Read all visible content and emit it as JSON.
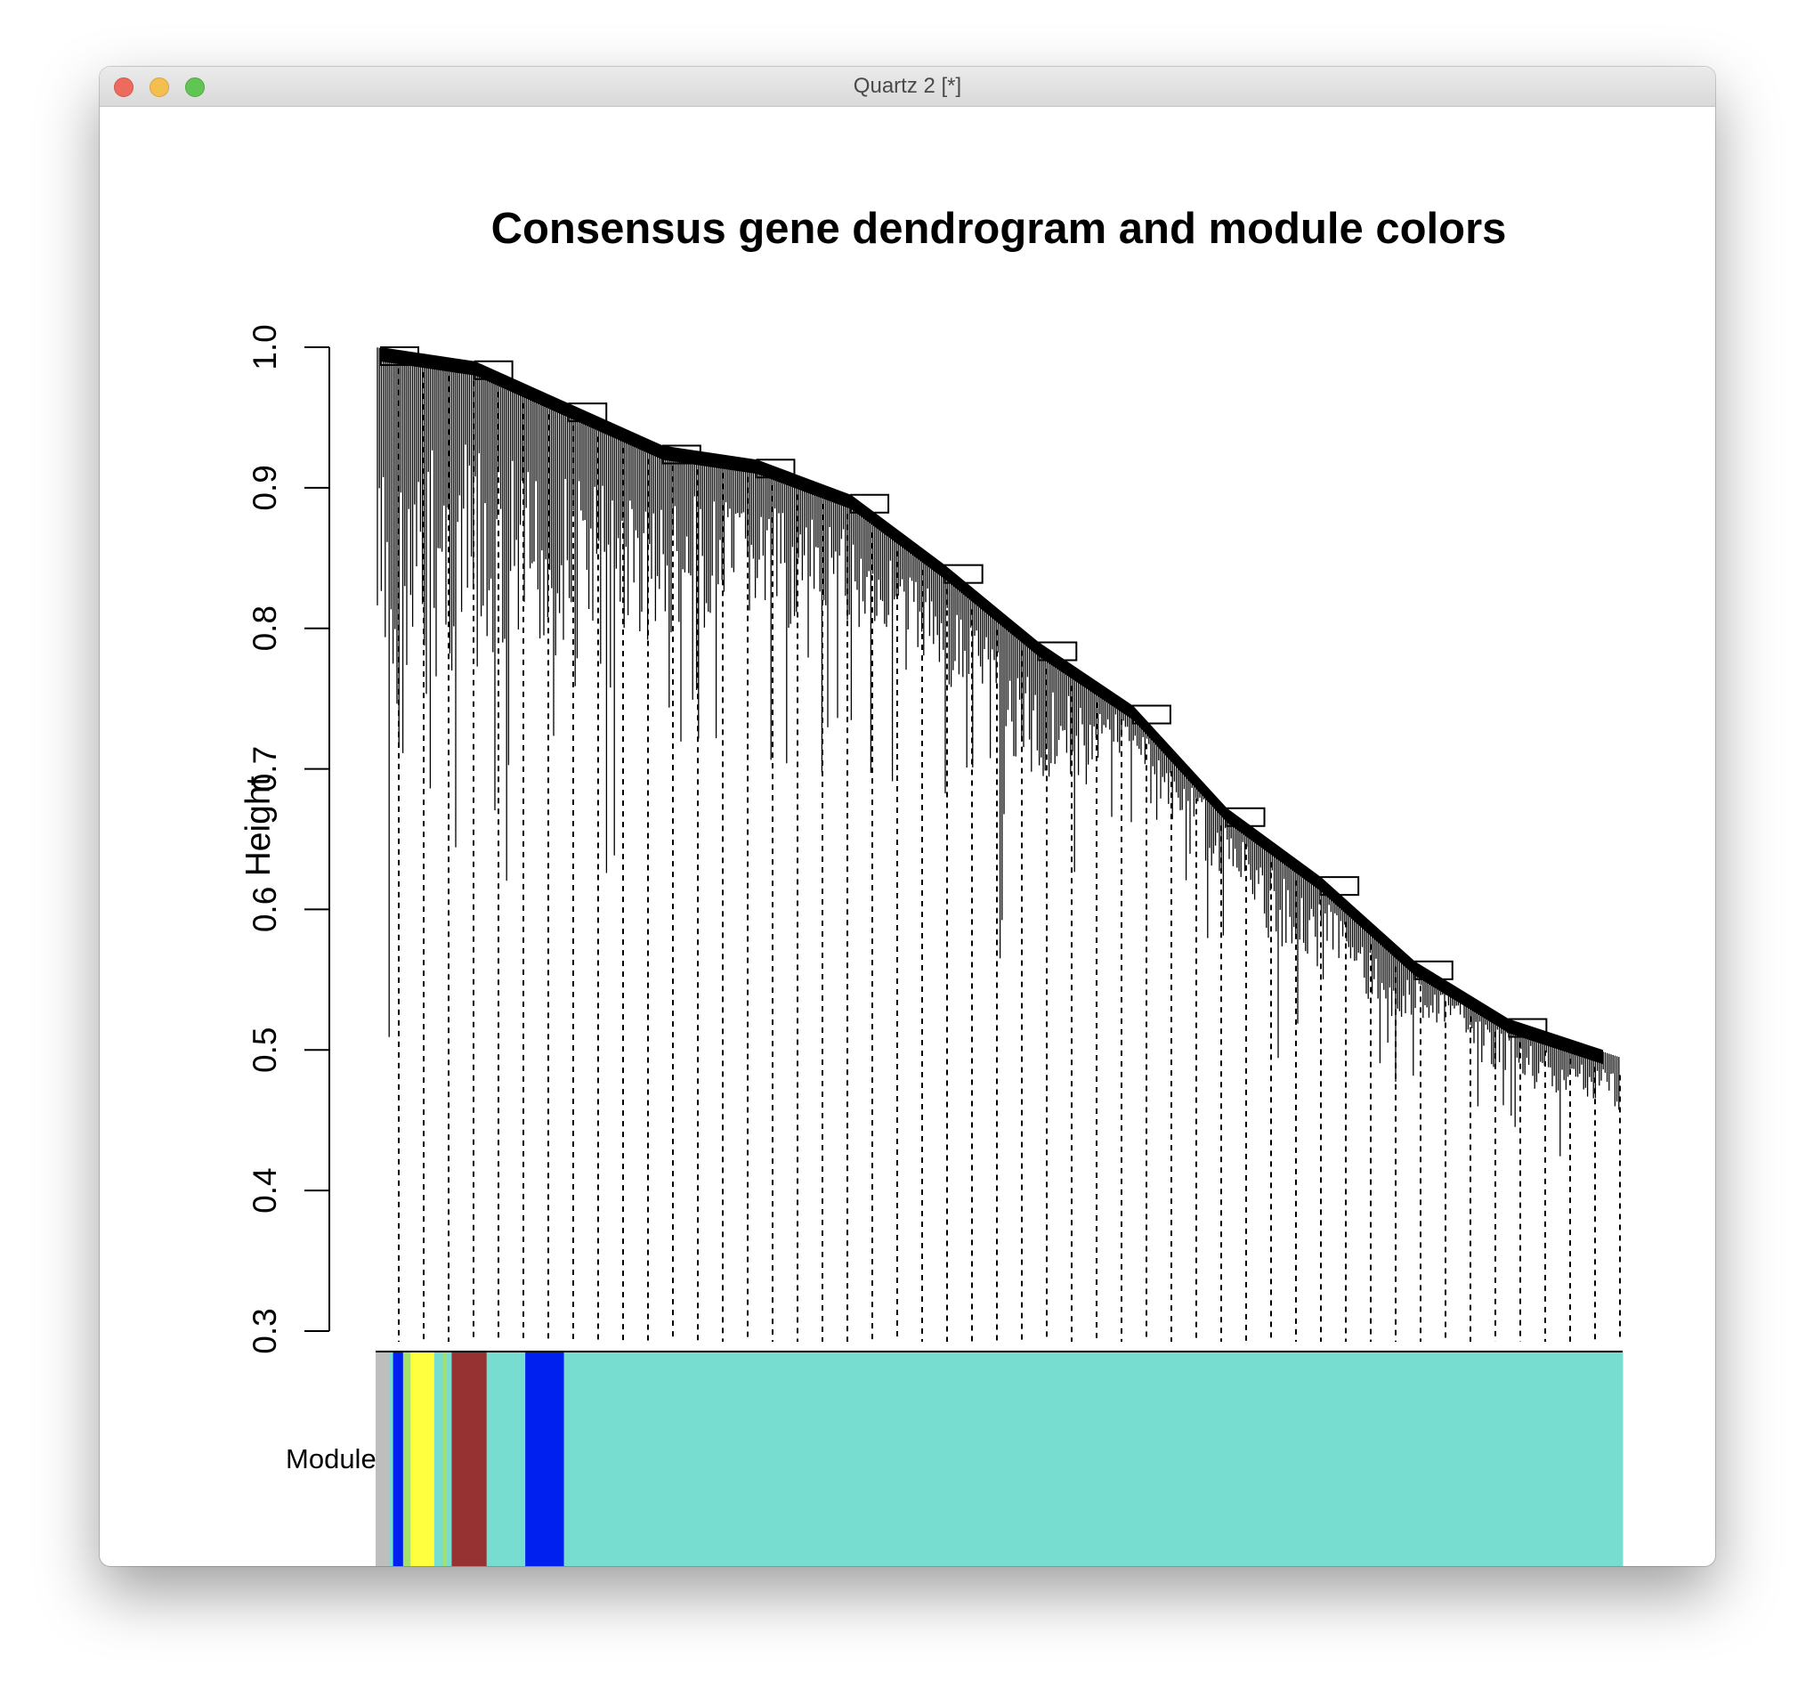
{
  "window": {
    "title": "Quartz 2 [*]"
  },
  "chart_data": {
    "type": "dendrogram",
    "title": "Consensus gene dendrogram and module colors",
    "xlabel": "",
    "ylabel": "Height",
    "ylim": [
      0.3,
      1.0
    ],
    "y_ticks": [
      "0.3",
      "0.4",
      "0.5",
      "0.6",
      "0.7",
      "0.8",
      "0.9",
      "1.0"
    ],
    "grid": false,
    "color_bar_label": "Module colors",
    "module_colors": {
      "grey": "#bebebe",
      "blue": "#0020f0",
      "yellow": "#ffff40",
      "greenyellow": "#a6e06a",
      "brown": "#963232",
      "turquoise": "#76ddd0"
    },
    "module_color_segments": [
      {
        "color": "grey",
        "fraction": 0.011
      },
      {
        "color": "turquoise",
        "fraction": 0.003
      },
      {
        "color": "blue",
        "fraction": 0.008
      },
      {
        "color": "greenyellow",
        "fraction": 0.006
      },
      {
        "color": "yellow",
        "fraction": 0.019
      },
      {
        "color": "turquoise",
        "fraction": 0.007
      },
      {
        "color": "greenyellow",
        "fraction": 0.003
      },
      {
        "color": "turquoise",
        "fraction": 0.004
      },
      {
        "color": "brown",
        "fraction": 0.028
      },
      {
        "color": "turquoise",
        "fraction": 0.031
      },
      {
        "color": "blue",
        "fraction": 0.031
      },
      {
        "color": "turquoise",
        "fraction": 0.849
      }
    ],
    "backbone_merge_heights": [
      1.0,
      0.99,
      0.96,
      0.93,
      0.92,
      0.895,
      0.845,
      0.79,
      0.745,
      0.672,
      0.623,
      0.563,
      0.522,
      0.5
    ],
    "deep_branch_tips": [
      0.34,
      0.47,
      0.48,
      0.55,
      0.6,
      0.61,
      0.64,
      0.66,
      0.67,
      0.69,
      0.68,
      0.66,
      0.56,
      0.6,
      0.66,
      0.62,
      0.57,
      0.49,
      0.52,
      0.46,
      0.48,
      0.44,
      0.42,
      0.41
    ]
  }
}
